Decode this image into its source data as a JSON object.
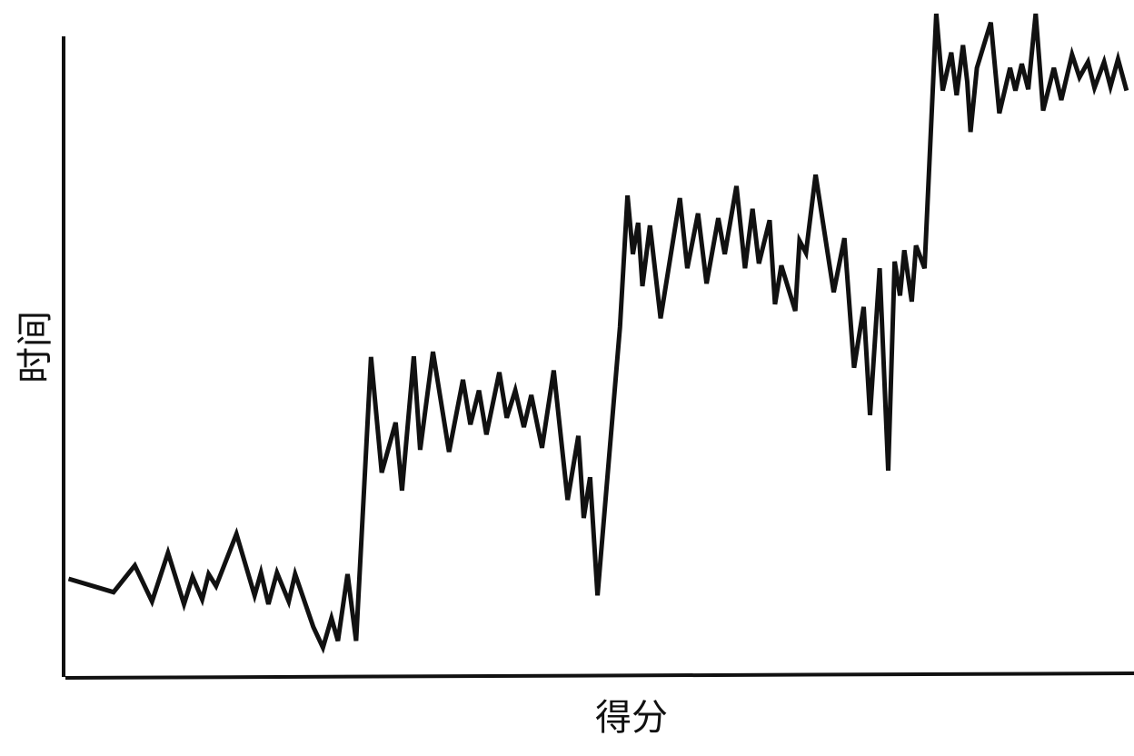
{
  "chart_data": {
    "type": "line",
    "x_label": "得分",
    "y_label": "时间",
    "xlim": [
      0,
      100
    ],
    "ylim": [
      0,
      100
    ],
    "color": "#111111",
    "x": [
      0.3,
      4.5,
      6.5,
      8.1,
      9.6,
      11.1,
      11.9,
      12.8,
      13.4,
      14.1,
      16.0,
      17.7,
      18.3,
      19.0,
      19.8,
      20.9,
      21.5,
      23.2,
      24.1,
      24.9,
      25.5,
      26.4,
      27.2,
      28.6,
      29.6,
      30.9,
      31.5,
      32.6,
      33.2,
      34.4,
      35.9,
      37.2,
      37.9,
      38.7,
      39.4,
      40.6,
      41.3,
      42.1,
      42.9,
      43.6,
      44.6,
      45.7,
      47.0,
      48.0,
      48.5,
      49.1,
      49.8,
      51.9,
      52.6,
      53.1,
      53.6,
      54.0,
      54.7,
      55.7,
      57.5,
      58.2,
      59.2,
      60.0,
      61.1,
      61.7,
      62.8,
      63.6,
      64.3,
      64.9,
      65.9,
      66.4,
      67.0,
      68.3,
      68.7,
      69.3,
      70.2,
      71.9,
      72.9,
      73.8,
      74.7,
      75.3,
      76.2,
      77.0,
      77.6,
      78.1,
      78.5,
      79.2,
      79.6,
      80.4,
      81.5,
      82.1,
      82.9,
      83.4,
      84.0,
      84.4,
      84.7,
      85.3,
      86.6,
      87.4,
      88.4,
      88.9,
      89.5,
      90.1,
      90.8,
      91.5,
      92.5,
      93.2,
      94.2,
      94.9,
      95.7,
      96.3,
      97.2,
      97.8,
      98.5,
      99.3
    ],
    "values": [
      14.7,
      12.7,
      16.7,
      11.3,
      18.6,
      10.9,
      15.0,
      11.6,
      15.4,
      13.6,
      21.4,
      12.2,
      15.6,
      10.9,
      15.6,
      11.3,
      15.4,
      7.5,
      4.4,
      8.8,
      5.4,
      15.4,
      5.4,
      47.9,
      30.6,
      38.1,
      27.9,
      48.0,
      34.0,
      48.7,
      33.7,
      44.5,
      37.8,
      42.9,
      36.3,
      45.6,
      38.8,
      42.9,
      37.4,
      42.2,
      34.3,
      45.9,
      26.5,
      36.1,
      23.8,
      29.9,
      12.2,
      52.4,
      72.1,
      63.3,
      68.0,
      58.5,
      67.6,
      53.7,
      71.7,
      61.2,
      69.4,
      58.9,
      68.7,
      63.3,
      73.5,
      61.2,
      70.1,
      61.9,
      68.4,
      55.8,
      61.6,
      54.8,
      65.3,
      63.5,
      75.2,
      57.6,
      65.7,
      46.3,
      55.4,
      39.2,
      61.2,
      30.9,
      62.2,
      57.1,
      63.9,
      56.2,
      64.6,
      61.2,
      99.3,
      87.8,
      93.5,
      87.1,
      94.6,
      89.1,
      81.6,
      91.2,
      98.0,
      84.4,
      91.2,
      87.8,
      91.8,
      88.0,
      99.3,
      84.8,
      91.2,
      86.4,
      93.2,
      89.8,
      92.1,
      88.2,
      92.1,
      88.4,
      92.5,
      87.8
    ]
  }
}
